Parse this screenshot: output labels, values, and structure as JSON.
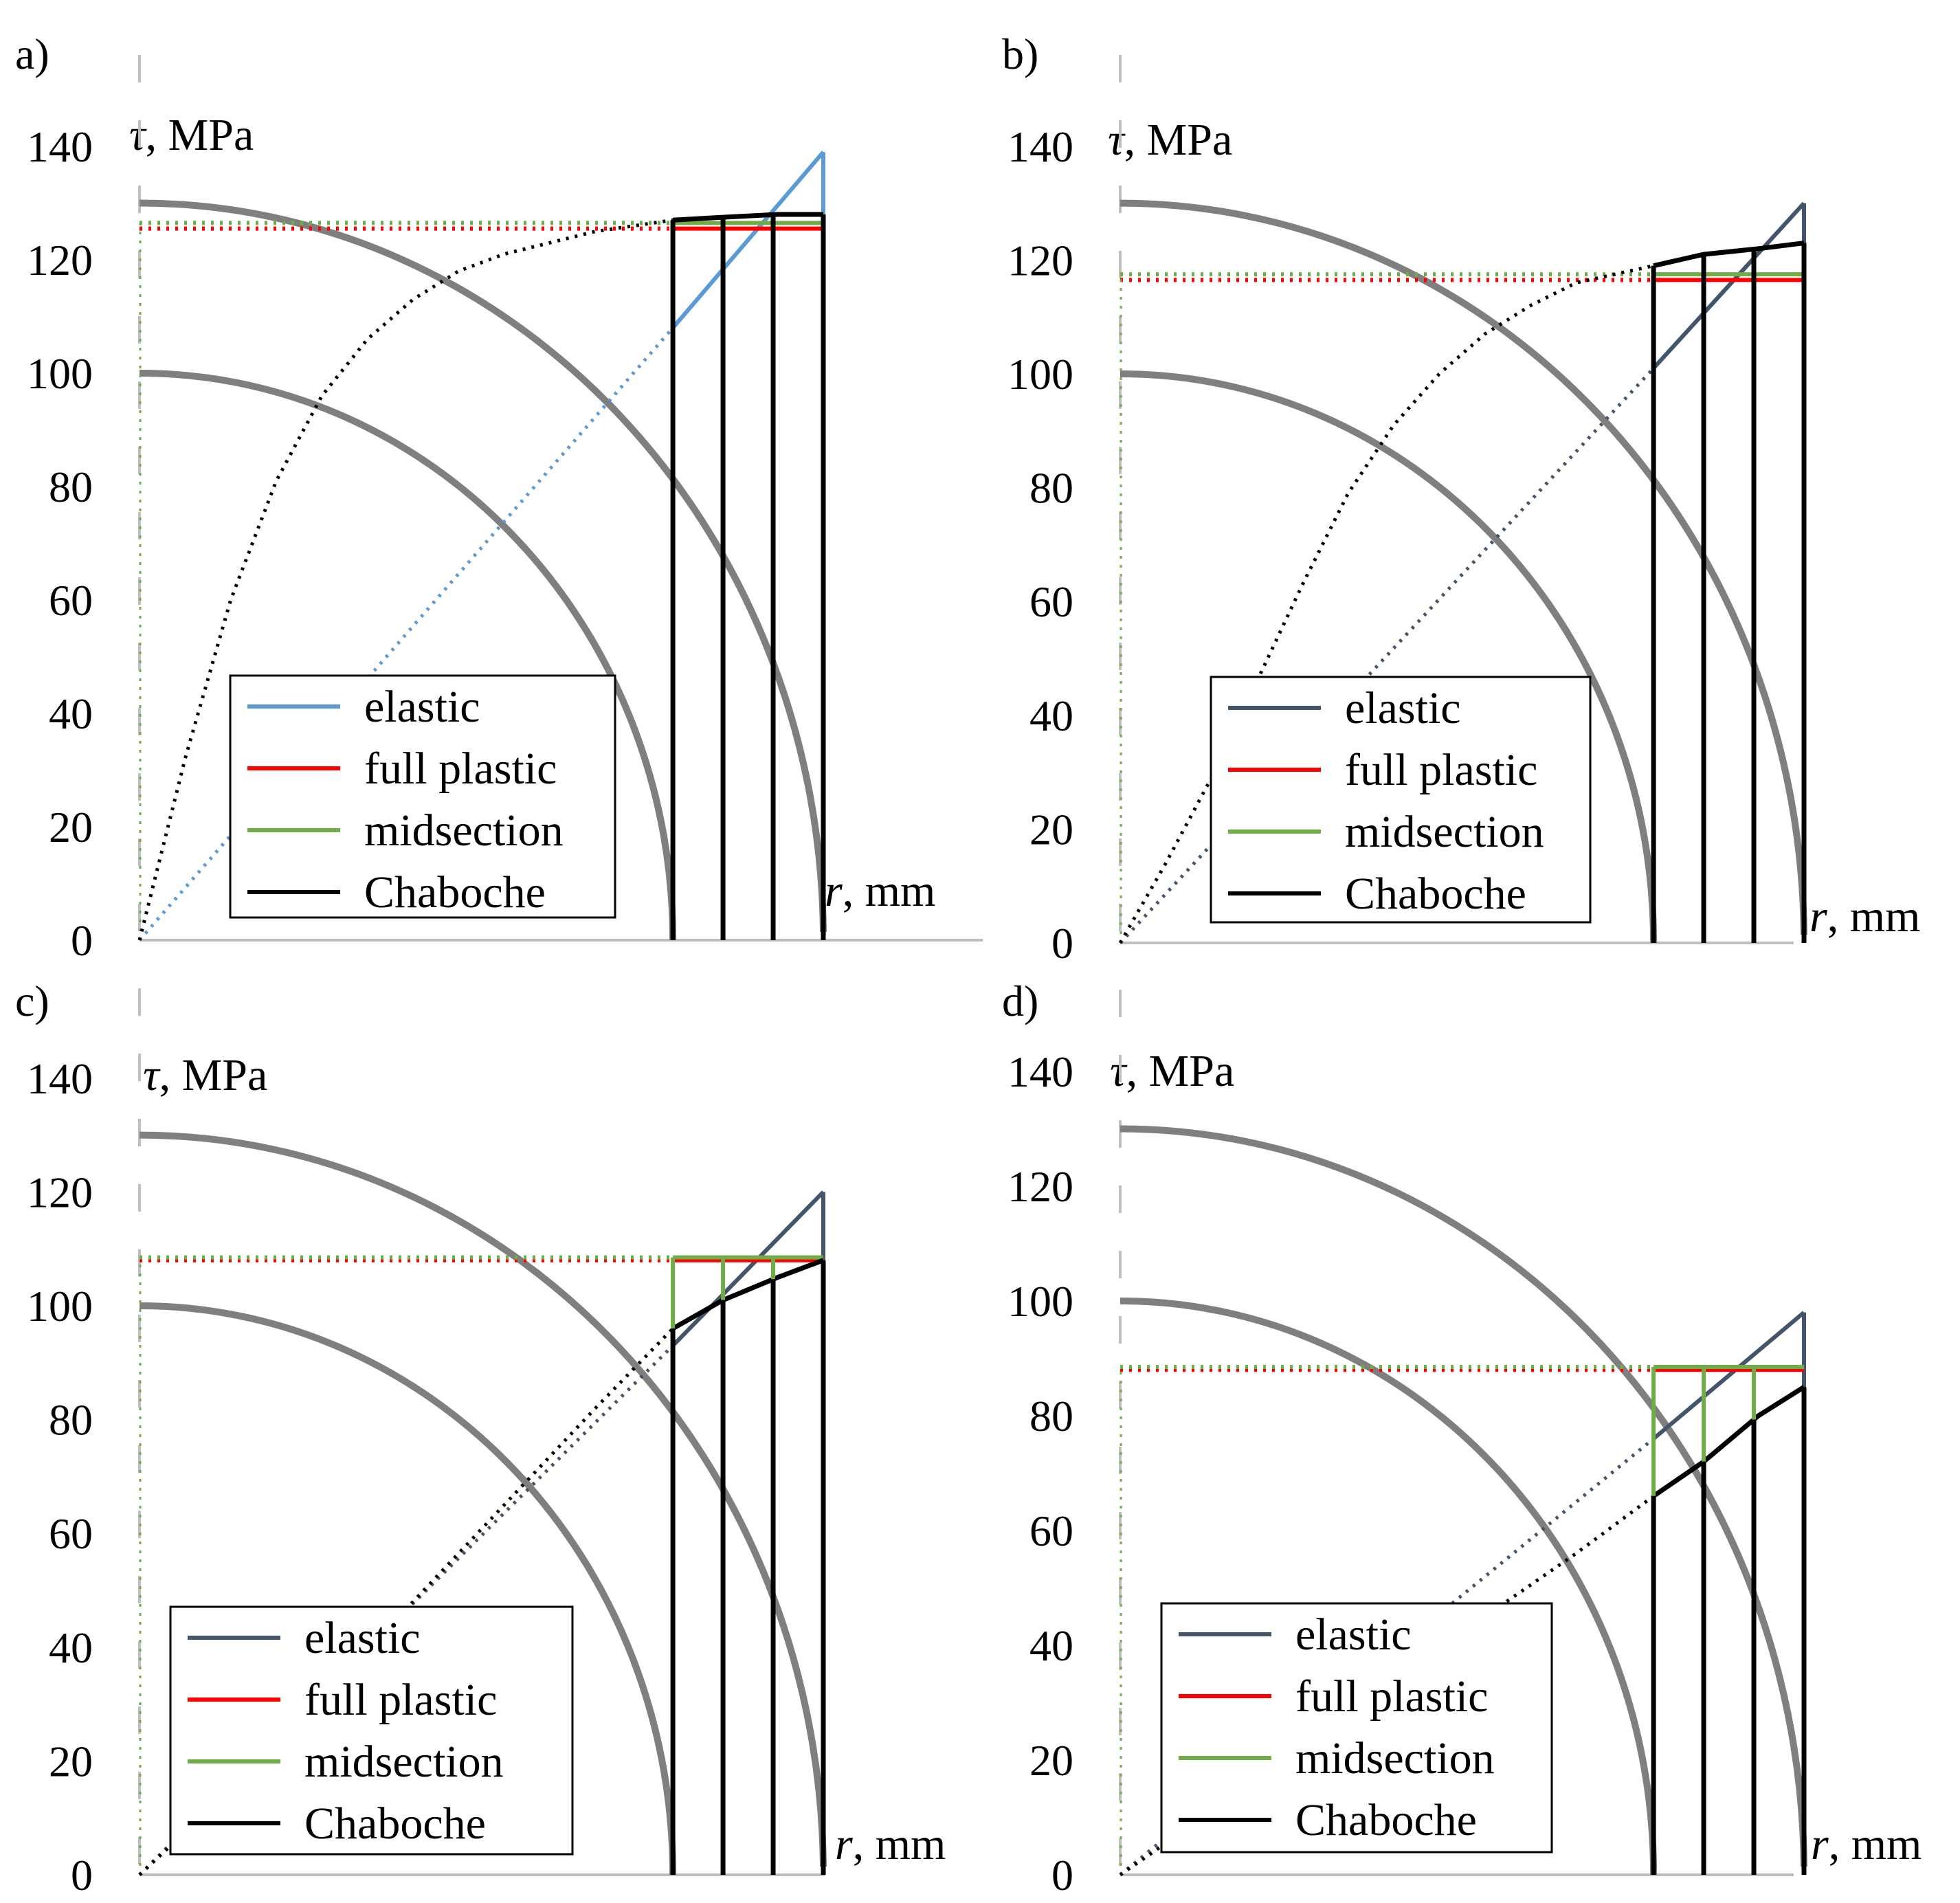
{
  "figure": {
    "panels": [
      {
        "label": "a)",
        "ylabel_var": "τ",
        "ylabel_unit": ", MPa",
        "xlabel_var": "r",
        "xlabel_unit": ", mm"
      },
      {
        "label": "b)",
        "ylabel_var": "τ",
        "ylabel_unit": ", MPa",
        "xlabel_var": "r",
        "xlabel_unit": ", mm"
      },
      {
        "label": "c)",
        "ylabel_var": "τ",
        "ylabel_unit": ", MPa",
        "xlabel_var": "r",
        "xlabel_unit": ", mm"
      },
      {
        "label": "d)",
        "ylabel_var": "τ",
        "ylabel_unit": ", MPa",
        "xlabel_var": "r",
        "xlabel_unit": ", mm"
      }
    ],
    "legend": [
      "elastic",
      "full plastic",
      "midsection",
      "Chaboche"
    ],
    "y_ticks": [
      "0",
      "20",
      "40",
      "60",
      "80",
      "100",
      "120",
      "140"
    ]
  },
  "colors": {
    "elastic_a": "#5B9BD5",
    "elastic": "#44546A",
    "full_plastic": "#FF0000",
    "midsection": "#70AD47",
    "chaboche": "#000000",
    "arcs": "#7F7F7F",
    "axis": "#BFBFBF"
  },
  "chart_data": [
    {
      "panel": "a)",
      "type": "line",
      "ylabel": "τ, MPa",
      "xlabel": "r, mm",
      "ylim": [
        0,
        140
      ],
      "xlim": [
        0,
        15
      ],
      "series": [
        {
          "name": "elastic",
          "x": [
            0,
            11.7,
            15
          ],
          "y": [
            0,
            108,
            139
          ]
        },
        {
          "name": "full plastic",
          "x": [
            0,
            15
          ],
          "y": [
            125.5,
            125.5
          ]
        },
        {
          "name": "midsection",
          "x": [
            0,
            15
          ],
          "y": [
            126.5,
            126.5
          ]
        },
        {
          "name": "Chaboche",
          "x": [
            0,
            1,
            2,
            3,
            4,
            5,
            6,
            7,
            8,
            9,
            10,
            11.7,
            12.8,
            14,
            15
          ],
          "y": [
            0,
            32,
            60,
            81,
            96,
            106,
            113,
            118,
            121,
            123,
            125,
            127,
            127.5,
            128,
            128
          ]
        }
      ],
      "elastic_core_r": 11.7
    },
    {
      "panel": "b)",
      "type": "line",
      "ylabel": "τ, MPa",
      "xlabel": "r, mm",
      "ylim": [
        0,
        140
      ],
      "xlim": [
        0,
        15
      ],
      "series": [
        {
          "name": "elastic",
          "x": [
            0,
            11.7,
            15
          ],
          "y": [
            0,
            101,
            130
          ]
        },
        {
          "name": "full plastic",
          "x": [
            0,
            15
          ],
          "y": [
            116.5,
            116.5
          ]
        },
        {
          "name": "midsection",
          "x": [
            0,
            15
          ],
          "y": [
            117.5,
            117.5
          ]
        },
        {
          "name": "Chaboche",
          "x": [
            0,
            1,
            2,
            3,
            4,
            5,
            6,
            7,
            8,
            9,
            10,
            11.7,
            12.8,
            14,
            15
          ],
          "y": [
            0,
            14,
            29,
            46,
            63,
            79,
            91,
            100,
            107,
            112,
            116,
            119,
            121,
            122,
            123
          ]
        }
      ],
      "elastic_core_r": 11.7
    },
    {
      "panel": "c)",
      "type": "line",
      "ylabel": "τ, MPa",
      "xlabel": "r, mm",
      "ylim": [
        0,
        140
      ],
      "xlim": [
        0,
        15
      ],
      "series": [
        {
          "name": "elastic",
          "x": [
            0,
            11.7,
            15
          ],
          "y": [
            0,
            93,
            120
          ]
        },
        {
          "name": "full plastic",
          "x": [
            0,
            15
          ],
          "y": [
            108,
            108
          ]
        },
        {
          "name": "midsection",
          "x": [
            0,
            15
          ],
          "y": [
            108.5,
            108.5
          ]
        },
        {
          "name": "Chaboche",
          "x": [
            0,
            2,
            4,
            6,
            8,
            10,
            11.7,
            12.8,
            14,
            15
          ],
          "y": [
            0,
            15,
            31,
            48,
            65,
            82,
            96,
            101,
            105,
            108
          ]
        }
      ],
      "elastic_core_r": 11.7
    },
    {
      "panel": "d)",
      "type": "line",
      "ylabel": "τ, MPa",
      "xlabel": "r, mm",
      "ylim": [
        0,
        140
      ],
      "xlim": [
        0,
        15
      ],
      "series": [
        {
          "name": "elastic",
          "x": [
            0,
            11.7,
            15
          ],
          "y": [
            0,
            76,
            98
          ]
        },
        {
          "name": "full plastic",
          "x": [
            0,
            15
          ],
          "y": [
            88,
            88
          ]
        },
        {
          "name": "midsection",
          "x": [
            0,
            15
          ],
          "y": [
            88.5,
            88.5
          ]
        },
        {
          "name": "Chaboche",
          "x": [
            0,
            2,
            4,
            6,
            8,
            10,
            11.7,
            12.8,
            14,
            15
          ],
          "y": [
            0,
            11,
            22,
            34,
            45,
            56,
            66,
            72,
            80,
            85
          ]
        }
      ],
      "elastic_core_r": 11.7
    }
  ]
}
